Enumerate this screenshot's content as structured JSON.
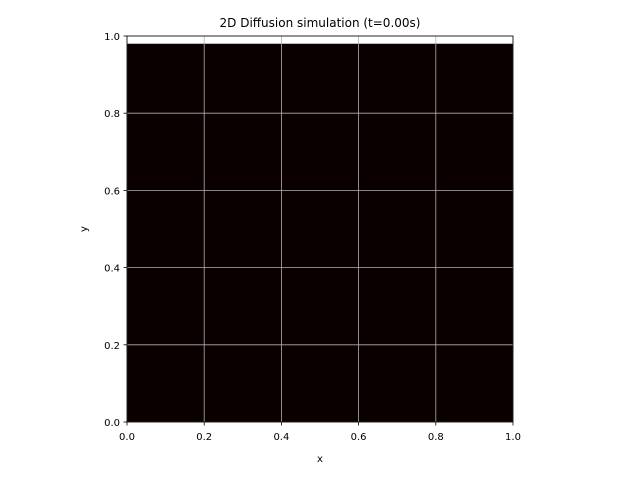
{
  "chart_data": {
    "type": "heatmap",
    "title": "2D Diffusion simulation (t=0.00s)",
    "xlabel": "x",
    "ylabel": "y",
    "xlim": [
      0.0,
      1.0
    ],
    "ylim": [
      0.0,
      1.0
    ],
    "xticks": [
      "0.0",
      "0.2",
      "0.4",
      "0.6",
      "0.8",
      "1.0"
    ],
    "yticks": [
      "0.0",
      "0.2",
      "0.4",
      "0.6",
      "0.8",
      "1.0"
    ],
    "grid": true,
    "field_extent": {
      "x": [
        0.0,
        1.0
      ],
      "y": [
        0.0,
        0.98
      ]
    },
    "field_value_description": "uniform",
    "field_color": "#0b0000",
    "grid_color": "#b0b0b0",
    "colorbar": false
  }
}
